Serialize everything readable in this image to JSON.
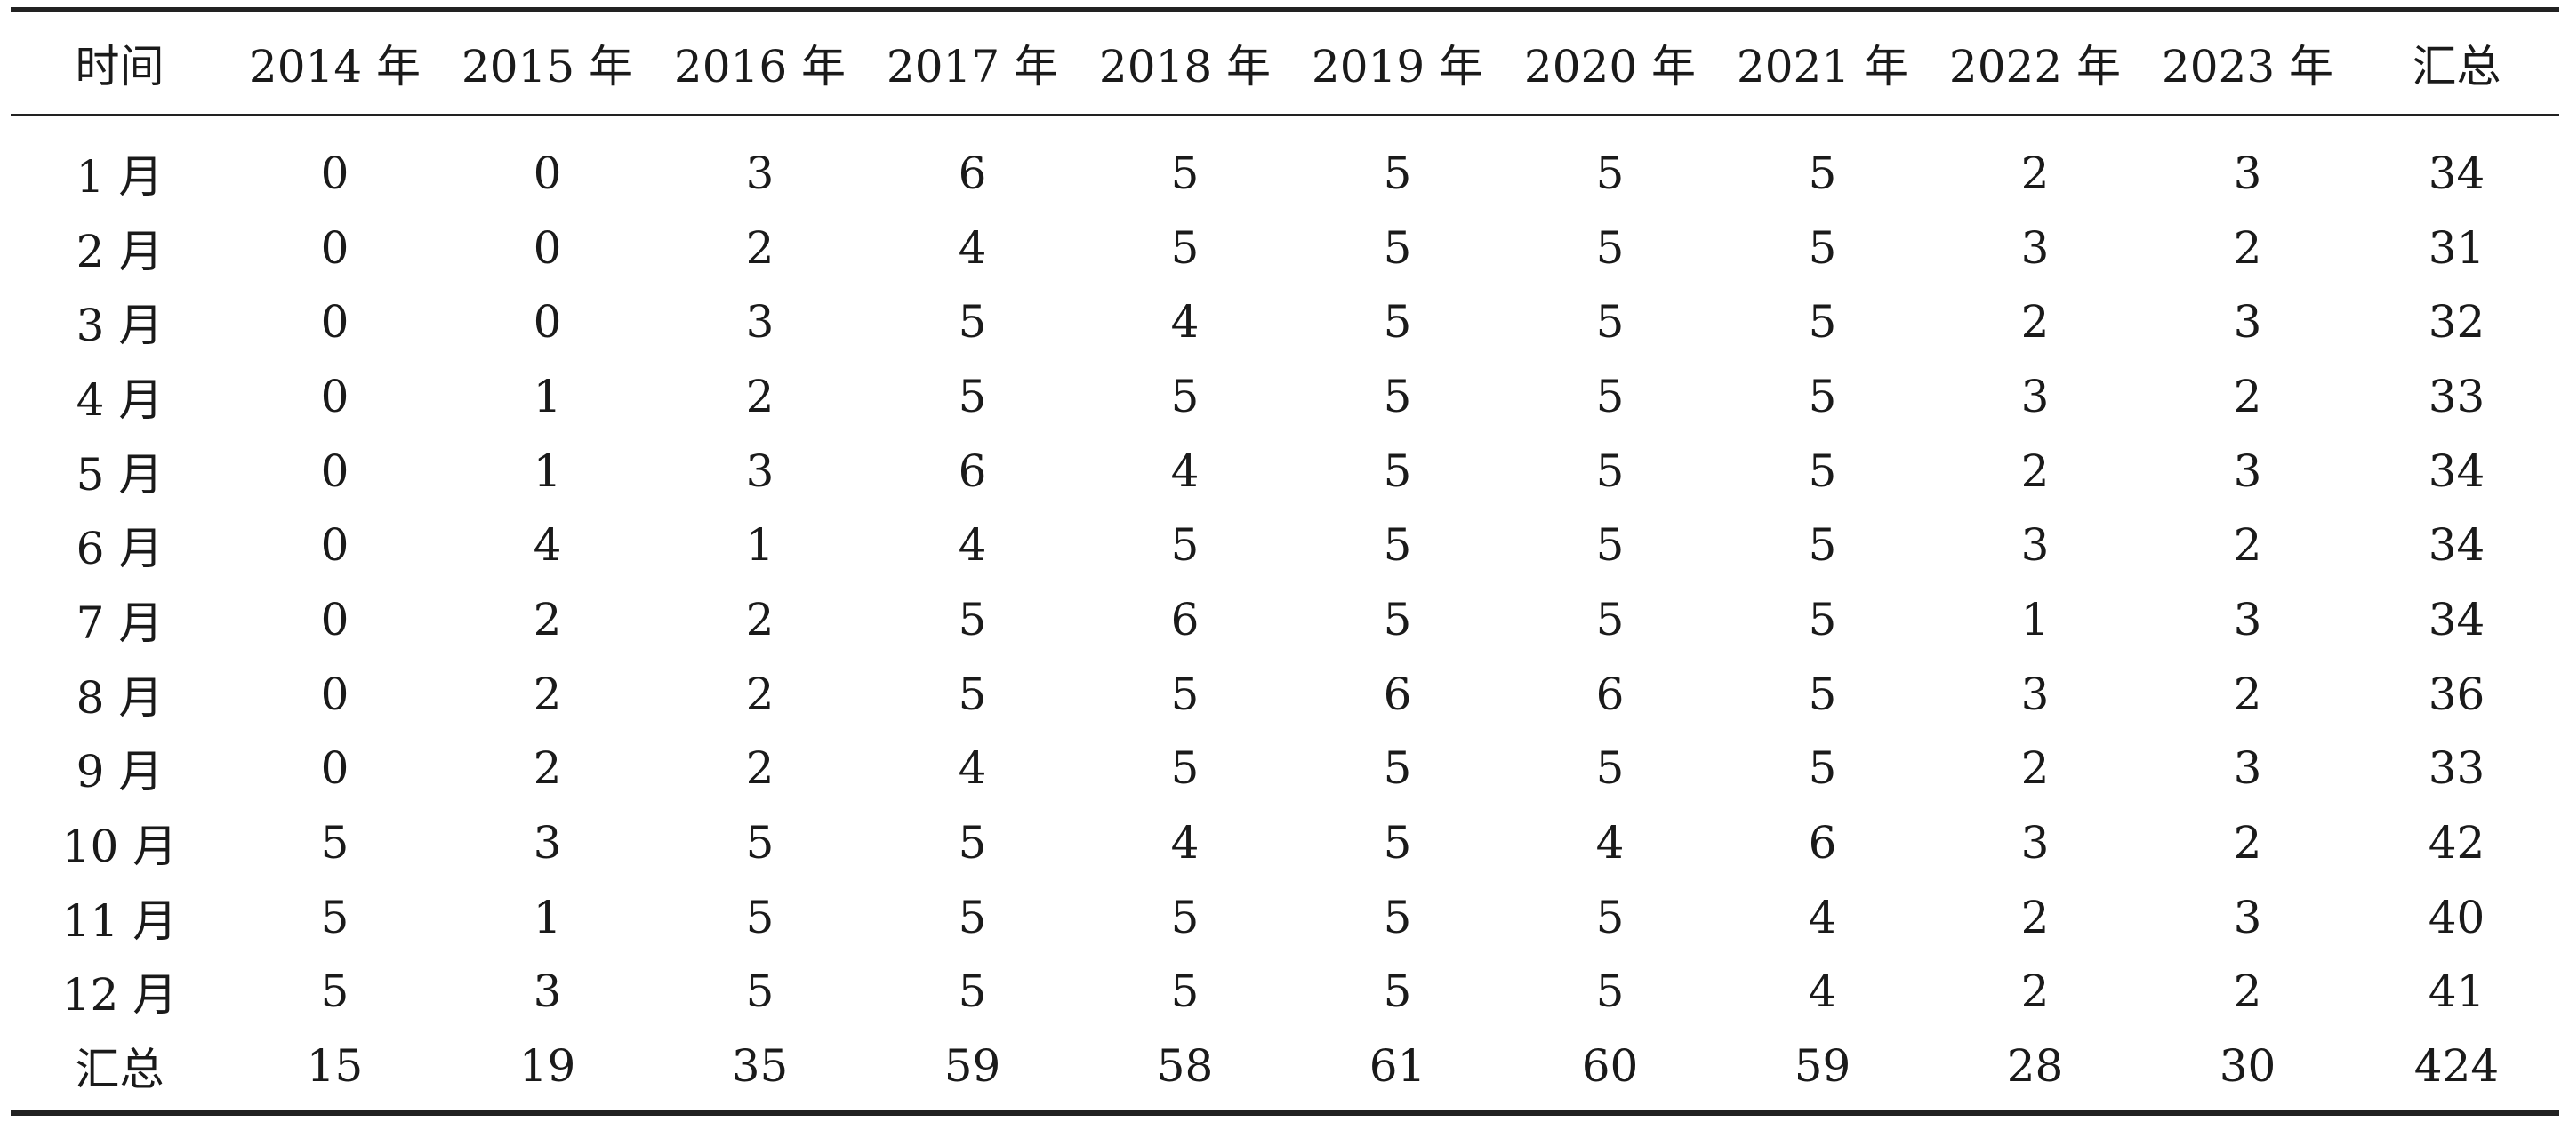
{
  "table": {
    "headers": [
      "时间",
      "2014 年",
      "2015 年",
      "2016 年",
      "2017 年",
      "2018 年",
      "2019 年",
      "2020 年",
      "2021 年",
      "2022 年",
      "2023 年",
      "汇总"
    ],
    "rows": [
      [
        "1 月",
        "0",
        "0",
        "3",
        "6",
        "5",
        "5",
        "5",
        "5",
        "2",
        "3",
        "34"
      ],
      [
        "2 月",
        "0",
        "0",
        "2",
        "4",
        "5",
        "5",
        "5",
        "5",
        "3",
        "2",
        "31"
      ],
      [
        "3 月",
        "0",
        "0",
        "3",
        "5",
        "4",
        "5",
        "5",
        "5",
        "2",
        "3",
        "32"
      ],
      [
        "4 月",
        "0",
        "1",
        "2",
        "5",
        "5",
        "5",
        "5",
        "5",
        "3",
        "2",
        "33"
      ],
      [
        "5 月",
        "0",
        "1",
        "3",
        "6",
        "4",
        "5",
        "5",
        "5",
        "2",
        "3",
        "34"
      ],
      [
        "6 月",
        "0",
        "4",
        "1",
        "4",
        "5",
        "5",
        "5",
        "5",
        "3",
        "2",
        "34"
      ],
      [
        "7 月",
        "0",
        "2",
        "2",
        "5",
        "6",
        "5",
        "5",
        "5",
        "1",
        "3",
        "34"
      ],
      [
        "8 月",
        "0",
        "2",
        "2",
        "5",
        "5",
        "6",
        "6",
        "5",
        "3",
        "2",
        "36"
      ],
      [
        "9 月",
        "0",
        "2",
        "2",
        "4",
        "5",
        "5",
        "5",
        "5",
        "2",
        "3",
        "33"
      ],
      [
        "10 月",
        "5",
        "3",
        "5",
        "5",
        "4",
        "5",
        "4",
        "6",
        "3",
        "2",
        "42"
      ],
      [
        "11 月",
        "5",
        "1",
        "5",
        "5",
        "5",
        "5",
        "5",
        "4",
        "2",
        "3",
        "40"
      ],
      [
        "12 月",
        "5",
        "3",
        "5",
        "5",
        "5",
        "5",
        "5",
        "4",
        "2",
        "2",
        "41"
      ],
      [
        "汇总",
        "15",
        "19",
        "35",
        "59",
        "58",
        "61",
        "60",
        "59",
        "28",
        "30",
        "424"
      ]
    ]
  }
}
